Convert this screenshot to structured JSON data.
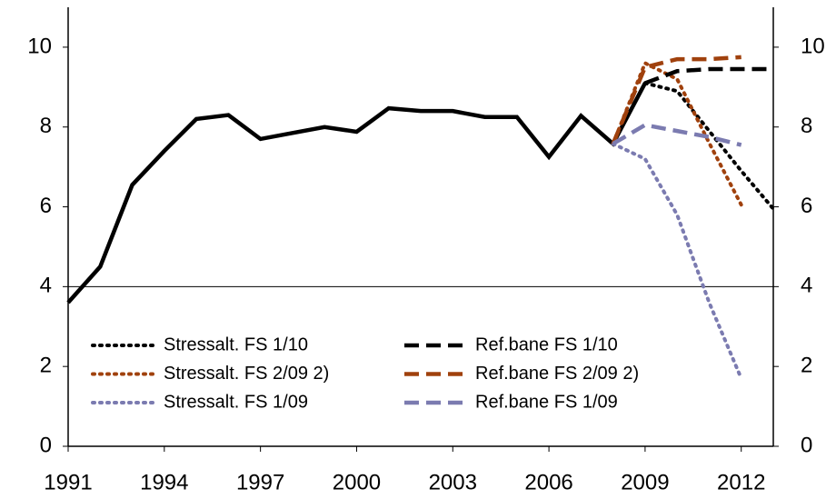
{
  "chart_data": {
    "type": "line",
    "xlim": [
      1991,
      2013
    ],
    "xticks": [
      1991,
      1994,
      1997,
      2000,
      2003,
      2006,
      2009,
      2012
    ],
    "ylim": [
      0,
      11
    ],
    "yticks": [
      0,
      2,
      4,
      6,
      8,
      10
    ],
    "y2lim": [
      0,
      11
    ],
    "y2ticks": [
      0,
      2,
      4,
      6,
      8,
      10
    ],
    "hline": 4,
    "series": [
      {
        "color": "#000000",
        "style": "solid",
        "x": [
          1991,
          1992,
          1993,
          1994,
          1995,
          1996,
          1997,
          1998,
          1999,
          2000,
          2001,
          2002,
          2003,
          2004,
          2005,
          2006,
          2007,
          2008,
          2009
        ],
        "values": [
          3.6,
          4.5,
          6.55,
          7.4,
          8.2,
          8.3,
          7.7,
          7.85,
          8.0,
          7.88,
          8.47,
          8.4,
          8.4,
          8.25,
          8.25,
          7.25,
          8.28,
          7.58,
          9.1
        ]
      },
      {
        "name": "Stressalt. FS 1/10",
        "color": "#000000",
        "style": "dotted",
        "x": [
          2009,
          2010,
          2011,
          2012,
          2013
        ],
        "values": [
          9.1,
          8.9,
          7.9,
          6.9,
          5.95
        ]
      },
      {
        "name": "Stressalt. FS 2/09 2)",
        "color": "#a0410d",
        "style": "dotted",
        "x": [
          2008,
          2009,
          2010,
          2011,
          2012
        ],
        "values": [
          7.58,
          9.6,
          9.2,
          7.6,
          6.05
        ]
      },
      {
        "name": "Stressalt. FS 1/09",
        "color": "#7b7bb0",
        "style": "dotted",
        "x": [
          2008,
          2009,
          2010,
          2011,
          2012
        ],
        "values": [
          7.58,
          7.2,
          5.8,
          3.6,
          1.7
        ]
      },
      {
        "name": "Ref.bane FS 1/10",
        "color": "#000000",
        "style": "dashed",
        "x": [
          2009,
          2010,
          2011,
          2012,
          2013
        ],
        "values": [
          9.1,
          9.4,
          9.45,
          9.45,
          9.45
        ]
      },
      {
        "name": "Ref.bane FS 2/09 2)",
        "color": "#a0410d",
        "style": "dashed",
        "x": [
          2008,
          2009,
          2010,
          2011,
          2012
        ],
        "values": [
          7.58,
          9.5,
          9.7,
          9.7,
          9.75
        ]
      },
      {
        "name": "Ref.bane FS 1/09",
        "color": "#7b7bb0",
        "style": "dashed",
        "x": [
          2008,
          2009,
          2010,
          2011,
          2012
        ],
        "values": [
          7.58,
          8.05,
          7.9,
          7.75,
          7.55
        ]
      }
    ]
  }
}
